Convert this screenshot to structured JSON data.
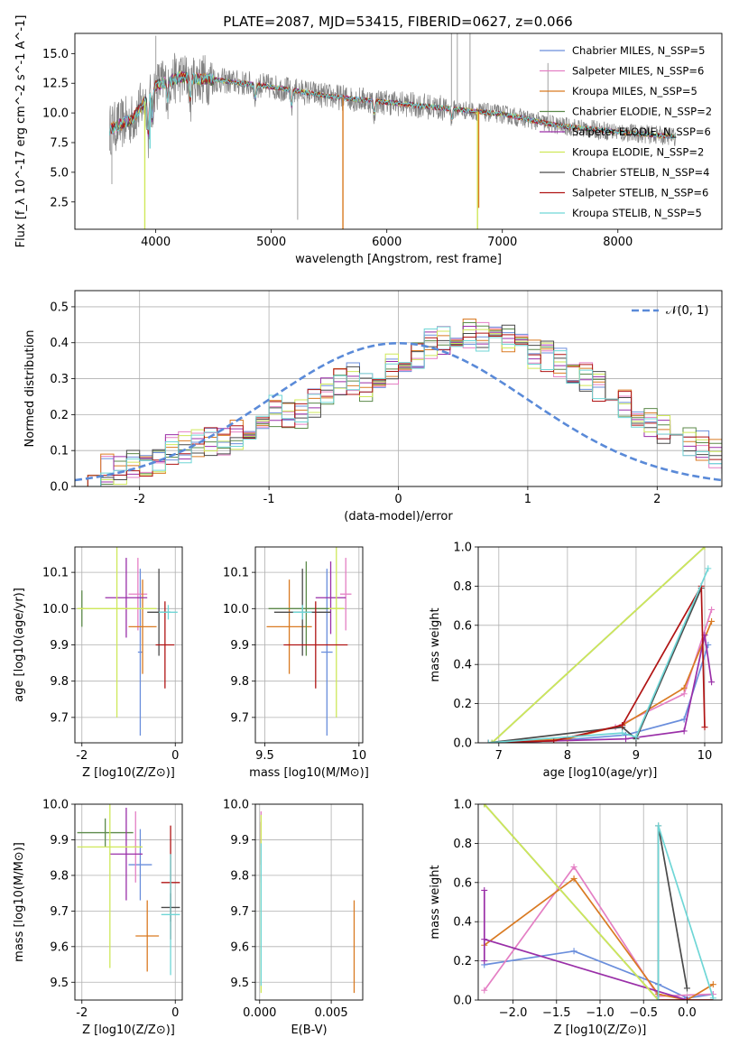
{
  "title": "PLATE=2087, MJD=53415, FIBERID=0627, z=0.066",
  "colors": {
    "Chabrier MILES": "#6a8edc",
    "Salpeter MILES": "#e47fc4",
    "Kroupa MILES": "#d97a22",
    "Chabrier ELODIE": "#5c8a4a",
    "Salpeter ELODIE": "#9a2fa8",
    "Kroupa ELODIE": "#cfe85a",
    "Chabrier STELIB": "#4a4a4a",
    "Salpeter STELIB": "#b01414",
    "Kroupa STELIB": "#6fd6d6",
    "data": "#808080",
    "normal": "#5a8ad8"
  },
  "chart_data": [
    {
      "id": "spectrum",
      "type": "line",
      "xlabel": "wavelength [Angstrom, rest frame]",
      "ylabel": "Flux [f_λ 10^-17 erg cm^-2 s^-1 A^-1]",
      "xlim": [
        3300,
        8900
      ],
      "ylim": [
        0.2,
        16.7
      ],
      "xticks": [
        4000,
        5000,
        6000,
        7000,
        8000
      ],
      "yticks": [
        2.5,
        5.0,
        7.5,
        10.0,
        12.5,
        15.0
      ],
      "legend_position": "top-right",
      "series": [
        {
          "name": "Chabrier MILES, N_SSP=5"
        },
        {
          "name": "Salpeter MILES, N_SSP=6"
        },
        {
          "name": "Kroupa MILES, N_SSP=5"
        },
        {
          "name": "Chabrier ELODIE, N_SSP=2"
        },
        {
          "name": "Salpeter ELODIE, N_SSP=6"
        },
        {
          "name": "Kroupa ELODIE, N_SSP=2"
        },
        {
          "name": "Chabrier STELIB, N_SSP=4"
        },
        {
          "name": "Salpeter STELIB, N_SSP=6"
        },
        {
          "name": "Kroupa STELIB, N_SSP=5"
        }
      ],
      "data_envelope": {
        "x": [
          3600,
          3800,
          4000,
          4200,
          4500,
          5000,
          5500,
          6000,
          6500,
          7000,
          7500,
          8000,
          8500
        ],
        "y": [
          8.6,
          9.5,
          12.3,
          13.0,
          12.8,
          12.2,
          11.4,
          10.9,
          10.4,
          9.9,
          8.9,
          8.4,
          8.0
        ]
      }
    },
    {
      "id": "residuals",
      "type": "histogram",
      "xlabel": "(data-model)/error",
      "ylabel": "Normed distribution",
      "xlim": [
        -2.5,
        2.5
      ],
      "ylim": [
        0,
        0.545
      ],
      "xticks": [
        -2,
        -1,
        0,
        1,
        2
      ],
      "yticks": [
        0.0,
        0.1,
        0.2,
        0.3,
        0.4,
        0.5
      ],
      "legend": "𝒩(0, 1)",
      "legend_position": "top-right",
      "bin_width": 0.1,
      "bin_start": -2.5,
      "hist_values": [
        0.04,
        0.03,
        0.05,
        0.04,
        0.06,
        0.07,
        0.08,
        0.1,
        0.11,
        0.12,
        0.12,
        0.13,
        0.14,
        0.16,
        0.18,
        0.21,
        0.19,
        0.2,
        0.23,
        0.27,
        0.29,
        0.3,
        0.28,
        0.31,
        0.33,
        0.35,
        0.37,
        0.4,
        0.41,
        0.42,
        0.43,
        0.42,
        0.4,
        0.41,
        0.39,
        0.37,
        0.36,
        0.35,
        0.33,
        0.3,
        0.28,
        0.26,
        0.23,
        0.2,
        0.18,
        0.16,
        0.14,
        0.13,
        0.11,
        0.09,
        0.08,
        0.07,
        0.06,
        0.05,
        0.05,
        0.04,
        0.03,
        0.03,
        0.03,
        0.02
      ]
    },
    {
      "id": "age_vs_Z",
      "type": "errorbar",
      "xlabel": "Z [log10(Z/Z⊙)]",
      "ylabel": "age [log10(age/yr)]",
      "xlim": [
        -2.15,
        0.15
      ],
      "ylim": [
        9.63,
        10.17
      ],
      "xticks": [
        -2,
        0
      ],
      "yticks": [
        9.7,
        9.8,
        9.9,
        10.0,
        10.1
      ],
      "points": [
        {
          "model": "Chabrier MILES",
          "x": -0.75,
          "y": 9.88,
          "xerr": 0.05,
          "yerr": 0.23
        },
        {
          "model": "Salpeter MILES",
          "x": -0.8,
          "y": 10.04,
          "xerr": 0.2,
          "yerr": 0.1
        },
        {
          "model": "Kroupa MILES",
          "x": -0.7,
          "y": 9.95,
          "xerr": 0.3,
          "yerr": 0.13
        },
        {
          "model": "Chabrier ELODIE",
          "x": -2.0,
          "y": 10.0,
          "xerr": 0.05,
          "yerr": 0.05
        },
        {
          "model": "Salpeter ELODIE",
          "x": -1.05,
          "y": 10.03,
          "xerr": 0.45,
          "yerr": 0.11
        },
        {
          "model": "Kroupa ELODIE",
          "x": -1.25,
          "y": 10.0,
          "xerr": 0.85,
          "yerr": 0.3
        },
        {
          "model": "Chabrier STELIB",
          "x": -0.35,
          "y": 9.99,
          "xerr": 0.25,
          "yerr": 0.12
        },
        {
          "model": "Salpeter STELIB",
          "x": -0.22,
          "y": 9.9,
          "xerr": 0.2,
          "yerr": 0.12
        },
        {
          "model": "Kroupa STELIB",
          "x": -0.15,
          "y": 9.99,
          "xerr": 0.2,
          "yerr": 0.02
        }
      ]
    },
    {
      "id": "age_vs_mass",
      "type": "errorbar",
      "xlabel": "mass [log10(M/M⊙)]",
      "ylabel": "",
      "xlim": [
        9.45,
        10.02
      ],
      "ylim": [
        9.63,
        10.17
      ],
      "xticks": [
        9.5,
        10.0
      ],
      "yticks": [
        9.7,
        9.8,
        9.9,
        10.0,
        10.1
      ],
      "points": [
        {
          "model": "Chabrier MILES",
          "x": 9.83,
          "y": 9.88,
          "xerr": 0.03,
          "yerr": 0.23
        },
        {
          "model": "Salpeter MILES",
          "x": 9.93,
          "y": 10.04,
          "xerr": 0.03,
          "yerr": 0.1
        },
        {
          "model": "Kroupa MILES",
          "x": 9.63,
          "y": 9.95,
          "xerr": 0.12,
          "yerr": 0.13
        },
        {
          "model": "Chabrier ELODIE",
          "x": 9.72,
          "y": 10.0,
          "xerr": 0.2,
          "yerr": 0.13
        },
        {
          "model": "Salpeter ELODIE",
          "x": 9.85,
          "y": 10.03,
          "xerr": 0.08,
          "yerr": 0.1
        },
        {
          "model": "Kroupa ELODIE",
          "x": 9.88,
          "y": 10.0,
          "xerr": 0.04,
          "yerr": 0.3
        },
        {
          "model": "Chabrier STELIB",
          "x": 9.7,
          "y": 9.99,
          "xerr": 0.15,
          "yerr": 0.12
        },
        {
          "model": "Salpeter STELIB",
          "x": 9.77,
          "y": 9.9,
          "xerr": 0.17,
          "yerr": 0.12
        },
        {
          "model": "Kroupa STELIB",
          "x": 9.7,
          "y": 9.99,
          "xerr": 0.05,
          "yerr": 0.02
        }
      ]
    },
    {
      "id": "weight_vs_age",
      "type": "line",
      "xlabel": "age [log10(age/yr)]",
      "ylabel": "mass weight",
      "xlim": [
        6.7,
        10.25
      ],
      "ylim": [
        0,
        1.0
      ],
      "xticks": [
        7,
        8,
        9,
        10
      ],
      "yticks": [
        0.0,
        0.2,
        0.4,
        0.6,
        0.8,
        1.0
      ],
      "series": [
        {
          "name": "Chabrier MILES",
          "x": [
            6.85,
            7.8,
            8.85,
            9.7,
            10.05
          ],
          "y": [
            0.0,
            0.01,
            0.04,
            0.12,
            0.5
          ]
        },
        {
          "name": "Salpeter MILES",
          "x": [
            6.85,
            7.8,
            8.7,
            9.7,
            10.1
          ],
          "y": [
            0.0,
            0.01,
            0.08,
            0.25,
            0.68
          ]
        },
        {
          "name": "Kroupa MILES",
          "x": [
            6.85,
            8.0,
            8.8,
            9.7,
            10.1
          ],
          "y": [
            0.0,
            0.02,
            0.09,
            0.28,
            0.62
          ]
        },
        {
          "name": "Chabrier ELODIE",
          "x": [
            6.9,
            10.0
          ],
          "y": [
            0.0,
            1.0
          ]
        },
        {
          "name": "Salpeter ELODIE",
          "x": [
            6.85,
            7.8,
            8.85,
            9.7,
            10.0,
            10.1
          ],
          "y": [
            0.0,
            0.01,
            0.02,
            0.06,
            0.55,
            0.31
          ]
        },
        {
          "name": "Kroupa ELODIE",
          "x": [
            6.9,
            10.0
          ],
          "y": [
            0.0,
            1.0
          ]
        },
        {
          "name": "Chabrier STELIB",
          "x": [
            6.85,
            8.8,
            9.0,
            9.95
          ],
          "y": [
            0.0,
            0.08,
            0.02,
            0.79
          ]
        },
        {
          "name": "Salpeter STELIB",
          "x": [
            6.85,
            7.8,
            8.8,
            9.95,
            10.0
          ],
          "y": [
            0.0,
            0.01,
            0.09,
            0.8,
            0.08
          ]
        },
        {
          "name": "Kroupa STELIB",
          "x": [
            6.85,
            8.8,
            9.0,
            10.05
          ],
          "y": [
            0.0,
            0.05,
            0.03,
            0.89
          ]
        }
      ]
    },
    {
      "id": "mass_vs_Z",
      "type": "errorbar",
      "xlabel": "Z [log10(Z/Z⊙)]",
      "ylabel": "mass [log10(M/M⊙)]",
      "xlim": [
        -2.15,
        0.15
      ],
      "ylim": [
        9.45,
        10.0
      ],
      "xticks": [
        -2,
        0
      ],
      "yticks": [
        9.5,
        9.6,
        9.7,
        9.8,
        9.9,
        10.0
      ],
      "points": [
        {
          "model": "Chabrier MILES",
          "x": -0.75,
          "y": 9.83,
          "xerr": 0.25,
          "yerr": 0.1
        },
        {
          "model": "Salpeter MILES",
          "x": -0.85,
          "y": 9.88,
          "xerr": 0.05,
          "yerr": 0.1
        },
        {
          "model": "Kroupa MILES",
          "x": -0.6,
          "y": 9.63,
          "xerr": 0.25,
          "yerr": 0.1
        },
        {
          "model": "Chabrier ELODIE",
          "x": -1.5,
          "y": 9.92,
          "xerr": 0.6,
          "yerr": 0.04
        },
        {
          "model": "Salpeter ELODIE",
          "x": -1.05,
          "y": 9.86,
          "xerr": 0.35,
          "yerr": 0.13
        },
        {
          "model": "Kroupa ELODIE",
          "x": -1.4,
          "y": 9.88,
          "xerr": 0.7,
          "yerr": 0.34
        },
        {
          "model": "Chabrier STELIB",
          "x": -0.1,
          "y": 9.71,
          "xerr": 0.2,
          "yerr": 0.04
        },
        {
          "model": "Salpeter STELIB",
          "x": -0.1,
          "y": 9.78,
          "xerr": 0.2,
          "yerr": 0.16
        },
        {
          "model": "Kroupa STELIB",
          "x": -0.1,
          "y": 9.69,
          "xerr": 0.2,
          "yerr": 0.17
        }
      ]
    },
    {
      "id": "mass_vs_ebv",
      "type": "errorbar",
      "xlabel": "E(B-V)",
      "ylabel": "",
      "xlim": [
        -0.0003,
        0.0072
      ],
      "ylim": [
        9.45,
        10.0
      ],
      "xticks": [
        0.0,
        0.005
      ],
      "xticklabels": [
        "0.000",
        "0.005"
      ],
      "yticks": [
        9.5,
        9.6,
        9.7,
        9.8,
        9.9,
        10.0
      ],
      "points": [
        {
          "model": "Salpeter MILES",
          "x": 0.0001,
          "y": 9.88,
          "xerr": 0.0,
          "yerr": 0.1
        },
        {
          "model": "Salpeter STELIB",
          "x": 0.0001,
          "y": 9.89,
          "xerr": 0.0,
          "yerr": 0.06
        },
        {
          "model": "Kroupa ELODIE",
          "x": 0.0001,
          "y": 9.72,
          "xerr": 0.0,
          "yerr": 0.25
        },
        {
          "model": "Kroupa STELIB",
          "x": 0.0001,
          "y": 9.69,
          "xerr": 0.0,
          "yerr": 0.2
        },
        {
          "model": "Kroupa MILES",
          "x": 0.0066,
          "y": 9.6,
          "xerr": 0.0,
          "yerr": 0.13
        }
      ]
    },
    {
      "id": "weight_vs_Z",
      "type": "line",
      "xlabel": "Z [log10(Z/Z⊙)]",
      "ylabel": "mass weight",
      "xlim": [
        -2.4,
        0.4
      ],
      "ylim": [
        0,
        1.0
      ],
      "xticks": [
        -2.0,
        -1.5,
        -1.0,
        -0.5,
        0.0
      ],
      "xticklabels": [
        "−2.0",
        "−1.5",
        "−1.0",
        "−0.5",
        "0.0"
      ],
      "yticks": [
        0.0,
        0.2,
        0.4,
        0.6,
        0.8,
        1.0
      ],
      "series": [
        {
          "name": "Chabrier MILES",
          "x": [
            -2.33,
            -1.3,
            -0.33,
            0.0,
            0.3
          ],
          "y": [
            0.18,
            0.25,
            0.08,
            0.01,
            0.03
          ]
        },
        {
          "name": "Salpeter MILES",
          "x": [
            -2.33,
            -1.3,
            -0.33,
            0.3
          ],
          "y": [
            0.05,
            0.68,
            0.02,
            0.03
          ]
        },
        {
          "name": "Kroupa MILES",
          "x": [
            -2.33,
            -1.3,
            -0.33,
            0.0,
            0.3
          ],
          "y": [
            0.28,
            0.62,
            0.03,
            0.0,
            0.08
          ]
        },
        {
          "name": "Chabrier ELODIE",
          "x": [
            -2.33,
            -0.33
          ],
          "y": [
            1.0,
            0.0
          ]
        },
        {
          "name": "Salpeter ELODIE",
          "x": [
            -2.33,
            -2.33,
            -2.33,
            0.0
          ],
          "y": [
            0.56,
            0.2,
            0.31,
            0.0
          ]
        },
        {
          "name": "Kroupa ELODIE",
          "x": [
            -2.33,
            -0.33
          ],
          "y": [
            1.0,
            0.0
          ]
        },
        {
          "name": "Chabrier STELIB",
          "x": [
            -0.33,
            -0.33,
            0.0
          ],
          "y": [
            0.0,
            0.89,
            0.06
          ]
        },
        {
          "name": "Salpeter STELIB",
          "x": [
            -0.33,
            0.0,
            0.3
          ],
          "y": [
            0.0,
            0.0,
            0.0
          ]
        },
        {
          "name": "Kroupa STELIB",
          "x": [
            -0.33,
            -0.33,
            0.3
          ],
          "y": [
            0.0,
            0.89,
            0.01
          ]
        }
      ]
    }
  ]
}
